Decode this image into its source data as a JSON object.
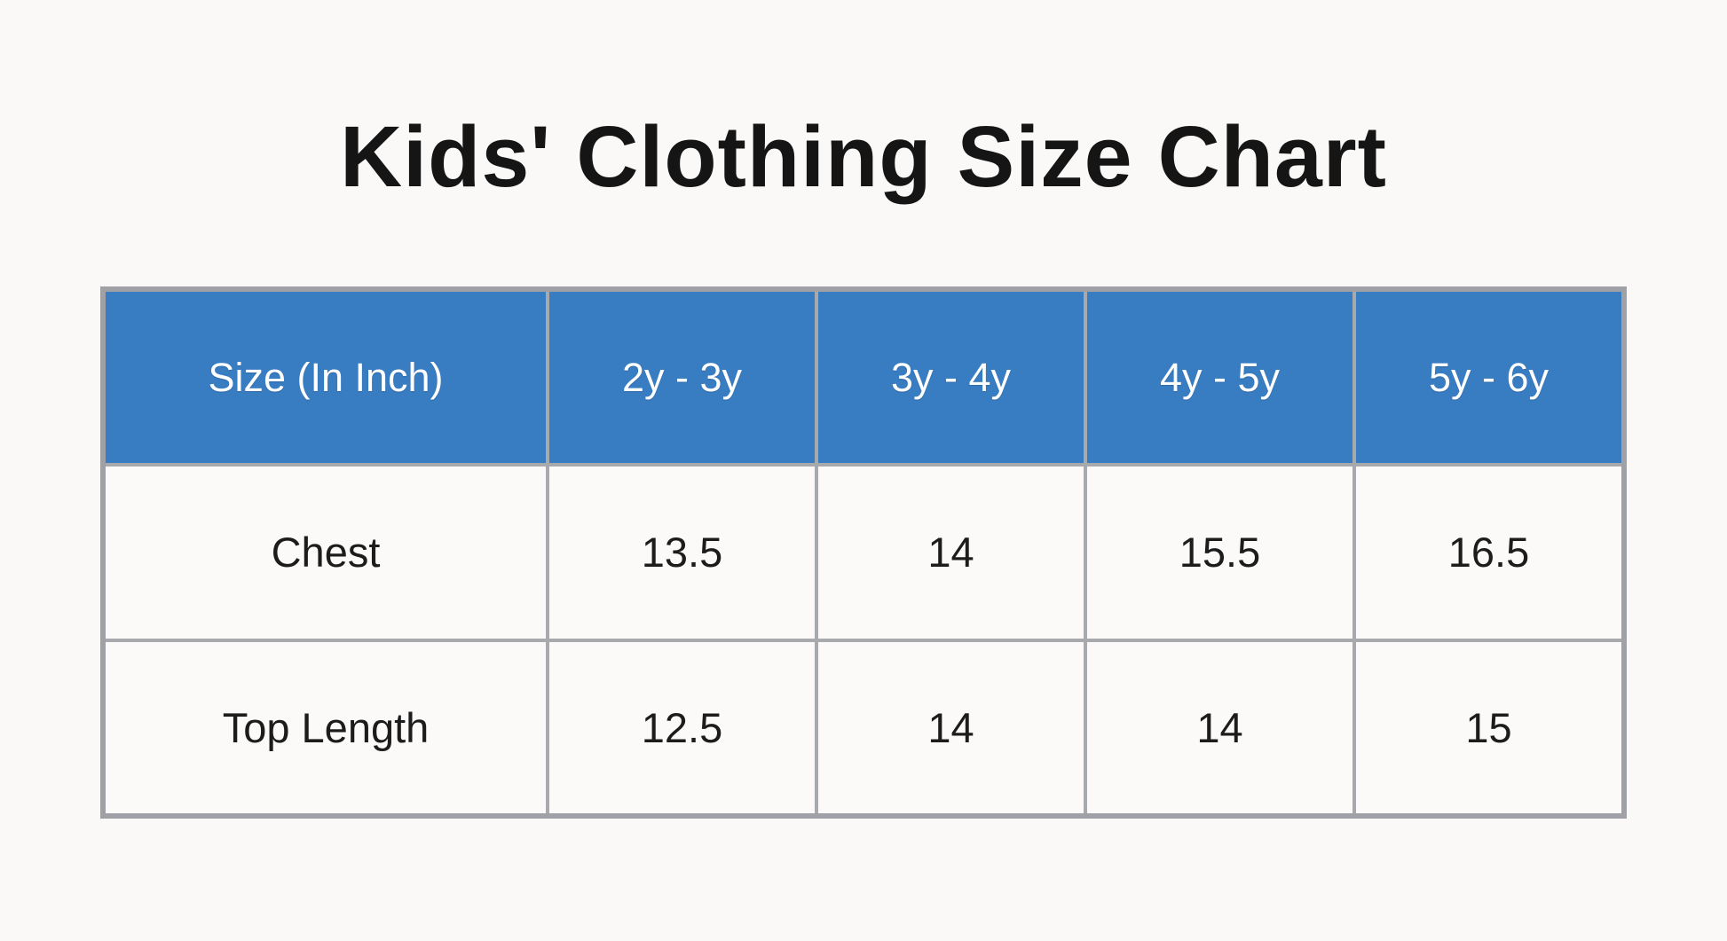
{
  "page": {
    "title": "Kids' Clothing Size Chart"
  },
  "colors": {
    "page_background": "#faf9f7",
    "header_background": "#387cc2",
    "header_text": "#ffffff",
    "gridline": "#a8a9ad",
    "outer_border": "#a0a1a6",
    "body_text": "#1c1c1c",
    "title_text": "#151515"
  },
  "table": {
    "header": [
      "Size (In Inch)",
      "2y - 3y",
      "3y - 4y",
      "4y - 5y",
      "5y - 6y"
    ],
    "rows": [
      {
        "label": "Chest",
        "values": [
          "13.5",
          "14",
          "15.5",
          "16.5"
        ]
      },
      {
        "label": "Top Length",
        "values": [
          "12.5",
          "14",
          "14",
          "15"
        ]
      }
    ]
  },
  "chart_data": {
    "type": "table",
    "title": "Kids' Clothing Size Chart",
    "unit": "inches",
    "columns": [
      "Size (In Inch)",
      "2y - 3y",
      "3y - 4y",
      "4y - 5y",
      "5y - 6y"
    ],
    "rows": [
      [
        "Chest",
        13.5,
        14,
        15.5,
        16.5
      ],
      [
        "Top Length",
        12.5,
        14,
        14,
        15
      ]
    ],
    "layout": {
      "header_fill": "#387cc2",
      "header_text_color": "#ffffff",
      "grid": true
    }
  }
}
